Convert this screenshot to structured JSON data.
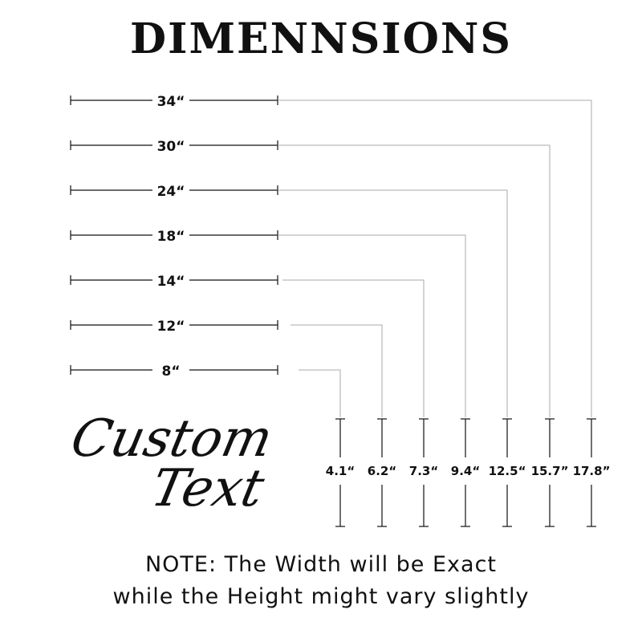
{
  "title": "DIMENNSIONS",
  "script_text": {
    "line1": "Custom",
    "line2": "Text"
  },
  "widths": [
    "34“",
    "30“",
    "24“",
    "18“",
    "14“",
    "12“",
    "8“"
  ],
  "heights": [
    "17.8”",
    "15.7”",
    "12.5“",
    "9.4“",
    "7.3“",
    "6.2“",
    "4.1“"
  ],
  "note": {
    "line1": "NOTE: The Width will be Exact",
    "line2": "while the Height might vary slightly"
  },
  "colors": {
    "ink": "#111111",
    "connector": "#aaaaaa"
  }
}
